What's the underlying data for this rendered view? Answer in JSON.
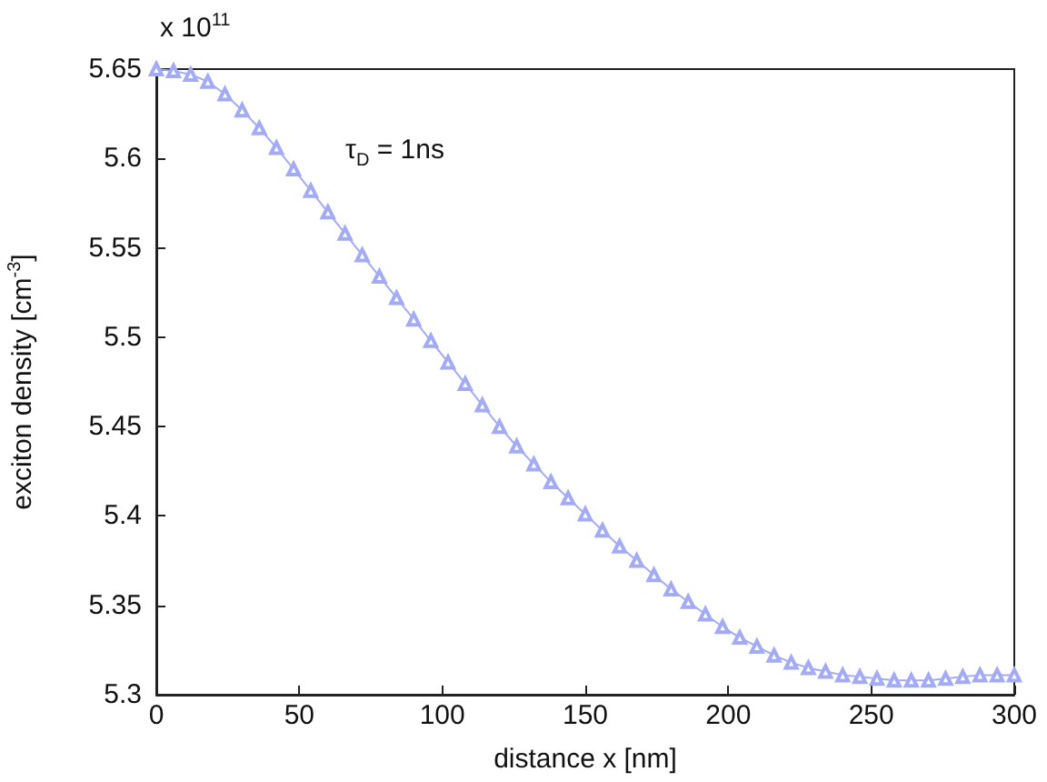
{
  "chart_data": {
    "type": "line",
    "xlabel": "distance x [nm]",
    "ylabel": "exciton density [cm$^{-3}$]",
    "annotations": [
      "x 10$^{11}$",
      "τ$_{D}$ = 1ns"
    ],
    "x": [
      0,
      6,
      12,
      18,
      24,
      30,
      36,
      42,
      48,
      54,
      60,
      66,
      72,
      78,
      84,
      90,
      96,
      102,
      108,
      114,
      120,
      126,
      132,
      138,
      144,
      150,
      156,
      162,
      168,
      174,
      180,
      186,
      192,
      198,
      204,
      210,
      216,
      222,
      228,
      234,
      240,
      246,
      252,
      258,
      264,
      270,
      276,
      282,
      288,
      294,
      300
    ],
    "series": [
      {
        "color": "#a3abf5",
        "values": [
          5.65,
          5.649,
          5.647,
          5.643,
          5.636,
          5.627,
          5.617,
          5.606,
          5.594,
          5.582,
          5.57,
          5.558,
          5.546,
          5.534,
          5.522,
          5.51,
          5.498,
          5.486,
          5.474,
          5.462,
          5.45,
          5.439,
          5.429,
          5.419,
          5.41,
          5.401,
          5.392,
          5.383,
          5.375,
          5.367,
          5.359,
          5.352,
          5.345,
          5.338,
          5.332,
          5.327,
          5.322,
          5.318,
          5.315,
          5.313,
          5.311,
          5.31,
          5.309,
          5.308,
          5.308,
          5.308,
          5.309,
          5.31,
          5.311,
          5.311,
          5.311
        ]
      }
    ],
    "xlim": [
      0,
      300
    ],
    "xticks": [
      0,
      50,
      100,
      150,
      200,
      250,
      300
    ],
    "ylim": [
      5.3,
      5.65
    ],
    "yticks": [
      5.3,
      5.35,
      5.4,
      5.45,
      5.5,
      5.55,
      5.6,
      5.65
    ],
    "grid": false,
    "marker": "triangle",
    "line_style": "solid"
  }
}
